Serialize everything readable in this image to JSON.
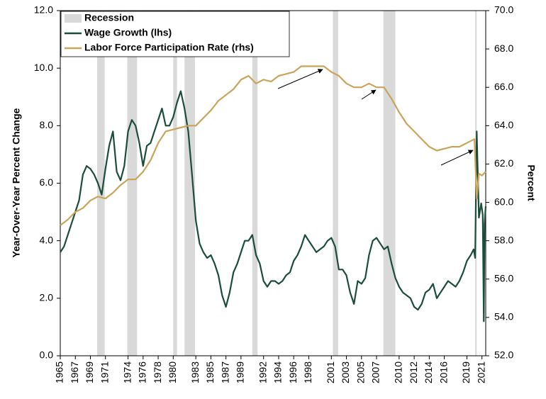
{
  "chart_data": {
    "type": "line",
    "y_label": "Year-Over-Year Percent Change",
    "y2_label": "Percent",
    "xlim": [
      1965,
      2021.5
    ],
    "xticks": [
      1965,
      1967,
      1969,
      1971,
      1974,
      1976,
      1978,
      1980,
      1983,
      1985,
      1987,
      1989,
      1992,
      1994,
      1996,
      1998,
      2001,
      2003,
      2005,
      2007,
      2010,
      2012,
      2014,
      2016,
      2019,
      2021
    ],
    "ylim": [
      0,
      12
    ],
    "yticks": [
      {
        "value": 0,
        "label": "0.0"
      },
      {
        "value": 2,
        "label": "2.0"
      },
      {
        "value": 4,
        "label": "4.0"
      },
      {
        "value": 6,
        "label": "6.0"
      },
      {
        "value": 8,
        "label": "8.0"
      },
      {
        "value": 10,
        "label": "10.0"
      },
      {
        "value": 12,
        "label": "12.0"
      }
    ],
    "y2lim": [
      52,
      70
    ],
    "y2ticks": [
      {
        "value": 52,
        "label": "52.0"
      },
      {
        "value": 54,
        "label": "54.0"
      },
      {
        "value": 56,
        "label": "56.0"
      },
      {
        "value": 58,
        "label": "58.0"
      },
      {
        "value": 60,
        "label": "60.0"
      },
      {
        "value": 62,
        "label": "62.0"
      },
      {
        "value": 64,
        "label": "64.0"
      },
      {
        "value": 66,
        "label": "66.0"
      },
      {
        "value": 68,
        "label": "68.0"
      },
      {
        "value": 70,
        "label": "70.0"
      }
    ],
    "recession": {
      "name": "Recession",
      "color": "#d9d9d9",
      "spans": [
        [
          1969.9,
          1970.9
        ],
        [
          1973.9,
          1975.2
        ],
        [
          1980.0,
          1980.5
        ],
        [
          1981.5,
          1982.9
        ],
        [
          1990.5,
          1991.2
        ],
        [
          2001.2,
          2001.9
        ],
        [
          2007.9,
          2009.5
        ],
        [
          2020.1,
          2020.3
        ]
      ]
    },
    "series": [
      {
        "name": "Wage Growth (lhs)",
        "color": "#1b4d3a",
        "x": [
          1965,
          1965.5,
          1966,
          1966.5,
          1967,
          1967.5,
          1968,
          1968.5,
          1969,
          1969.5,
          1970,
          1970.5,
          1971,
          1971.5,
          1972,
          1972.5,
          1973,
          1973.5,
          1974,
          1974.5,
          1975,
          1975.5,
          1976,
          1976.5,
          1977,
          1977.5,
          1978,
          1978.5,
          1979,
          1979.5,
          1980,
          1980.5,
          1981,
          1981.5,
          1982,
          1982.5,
          1983,
          1983.5,
          1984,
          1984.5,
          1985,
          1985.5,
          1986,
          1986.5,
          1987,
          1987.5,
          1988,
          1988.5,
          1989,
          1989.5,
          1990,
          1990.5,
          1991,
          1991.5,
          1992,
          1992.5,
          1993,
          1993.5,
          1994,
          1994.5,
          1995,
          1995.5,
          1996,
          1996.5,
          1997,
          1997.5,
          1998,
          1998.5,
          1999,
          1999.5,
          2000,
          2000.5,
          2001,
          2001.5,
          2002,
          2002.5,
          2003,
          2003.5,
          2004,
          2004.5,
          2005,
          2005.5,
          2006,
          2006.5,
          2007,
          2007.5,
          2008,
          2008.5,
          2009,
          2009.5,
          2010,
          2010.5,
          2011,
          2011.5,
          2012,
          2012.5,
          2013,
          2013.5,
          2014,
          2014.5,
          2015,
          2015.5,
          2016,
          2016.5,
          2017,
          2017.5,
          2018,
          2018.5,
          2019,
          2019.5,
          2019.9,
          2020.1,
          2020.3,
          2020.6,
          2020.9,
          2021.1,
          2021.25,
          2021.35,
          2021.5
        ],
        "values": [
          3.6,
          3.8,
          4.2,
          4.6,
          5.0,
          5.4,
          6.3,
          6.6,
          6.5,
          6.3,
          6.0,
          5.6,
          6.5,
          7.3,
          7.8,
          6.4,
          6.1,
          6.6,
          7.8,
          8.2,
          8.0,
          7.4,
          6.6,
          7.3,
          7.4,
          7.8,
          8.2,
          8.6,
          8.0,
          8.0,
          8.3,
          8.8,
          9.2,
          8.6,
          7.8,
          6.3,
          4.7,
          3.9,
          3.6,
          3.4,
          3.5,
          3.2,
          2.8,
          2.1,
          1.7,
          2.2,
          2.9,
          3.2,
          3.6,
          4.0,
          4.0,
          4.2,
          3.5,
          3.2,
          2.6,
          2.4,
          2.6,
          2.6,
          2.5,
          2.6,
          2.8,
          2.9,
          3.3,
          3.5,
          3.8,
          4.2,
          4.0,
          3.8,
          3.6,
          3.7,
          3.8,
          4.0,
          4.1,
          3.8,
          3.0,
          3.0,
          2.8,
          2.2,
          1.8,
          2.6,
          2.5,
          2.7,
          3.5,
          4.0,
          4.1,
          3.9,
          3.7,
          3.8,
          3.2,
          2.7,
          2.4,
          2.2,
          2.1,
          2.0,
          1.7,
          1.6,
          1.8,
          2.2,
          2.3,
          2.5,
          2.0,
          2.2,
          2.4,
          2.6,
          2.5,
          2.4,
          2.6,
          2.9,
          3.3,
          3.5,
          3.7,
          3.4,
          7.8,
          4.8,
          5.3,
          4.9,
          1.2,
          4.6,
          5.2
        ]
      },
      {
        "name": "Labor Force Participation Rate (rhs)",
        "color": "#c9a45b",
        "axis": "y2",
        "x": [
          1965,
          1966,
          1967,
          1968,
          1969,
          1970,
          1971,
          1972,
          1973,
          1974,
          1975,
          1976,
          1977,
          1978,
          1979,
          1980,
          1981,
          1982,
          1983,
          1984,
          1985,
          1986,
          1987,
          1988,
          1989,
          1990,
          1991,
          1992,
          1993,
          1994,
          1995,
          1996,
          1997,
          1998,
          1999,
          2000,
          2001,
          2002,
          2003,
          2004,
          2005,
          2006,
          2007,
          2008,
          2009,
          2010,
          2011,
          2012,
          2013,
          2014,
          2015,
          2016,
          2017,
          2018,
          2019,
          2020,
          2020.3,
          2020.6,
          2021,
          2021.5
        ],
        "values": [
          58.8,
          59.1,
          59.5,
          59.7,
          60.1,
          60.3,
          60.2,
          60.5,
          60.9,
          61.2,
          61.2,
          61.6,
          62.2,
          63.1,
          63.7,
          63.8,
          63.9,
          64.0,
          64.0,
          64.4,
          64.8,
          65.3,
          65.6,
          65.9,
          66.4,
          66.6,
          66.2,
          66.4,
          66.3,
          66.6,
          66.7,
          66.8,
          67.1,
          67.1,
          67.1,
          67.1,
          66.8,
          66.6,
          66.2,
          66.0,
          66.0,
          66.2,
          66.0,
          66.0,
          65.4,
          64.7,
          64.1,
          63.7,
          63.3,
          62.9,
          62.7,
          62.8,
          62.9,
          62.9,
          63.1,
          63.3,
          60.2,
          61.5,
          61.4,
          61.6
        ]
      }
    ]
  }
}
